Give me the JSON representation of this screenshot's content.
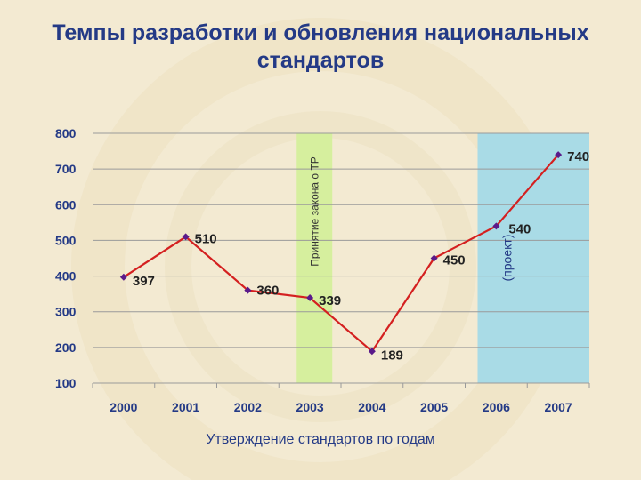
{
  "slide": {
    "title_line1": "Темпы разработки и обновления национальных",
    "title_line2": "стандартов"
  },
  "colors": {
    "axis_text": "#243a86",
    "line": "#d42020",
    "marker": "#5a1a8a",
    "band_law": "#d6ef9e",
    "band_project": "#a9dbe6",
    "grid": "#9a9a9a"
  },
  "chart_data": {
    "type": "line",
    "title": "Темпы разработки и обновления национальных стандартов",
    "xlabel": "Утверждение стандартов по годам",
    "ylabel": "",
    "ylim": [
      100,
      800
    ],
    "yticks": [
      100,
      200,
      300,
      400,
      500,
      600,
      700,
      800
    ],
    "grid": true,
    "categories": [
      "2000",
      "2001",
      "2002",
      "2003",
      "2004",
      "2005",
      "2006",
      "2007"
    ],
    "series": [
      {
        "values": [
          397,
          510,
          360,
          339,
          189,
          450,
          540,
          740
        ],
        "labels": [
          "397",
          "510",
          "360",
          "339",
          "189",
          "450",
          "540",
          "740"
        ]
      }
    ],
    "annotations": [
      {
        "text": "Принятие закона о ТР",
        "band": "2003-2004"
      },
      {
        "text": "(проект)",
        "band": "2006-2007"
      }
    ]
  }
}
